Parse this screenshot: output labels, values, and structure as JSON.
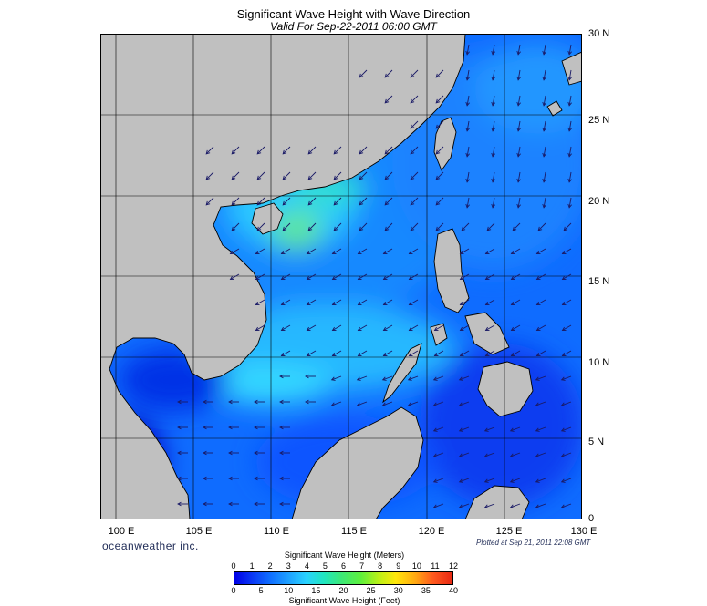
{
  "title": "Significant Wave Height with Wave Direction",
  "subtitle": "Valid For Sep-22-2011 06:00 GMT",
  "lat_labels": [
    "30 N",
    "25 N",
    "20 N",
    "15 N",
    "10 N",
    "5 N",
    "0"
  ],
  "lon_labels": [
    "100 E",
    "105 E",
    "110 E",
    "115 E",
    "120 E",
    "125 E",
    "130 E"
  ],
  "brand": "oceanweather inc.",
  "plotted": "Plotted at Sep 21, 2011 22:08 GMT",
  "colorbar": {
    "label_meters": "Significant Wave Height (Meters)",
    "label_feet": "Significant Wave Height (Feet)",
    "meters_ticks": [
      "0",
      "1",
      "2",
      "3",
      "4",
      "5",
      "6",
      "7",
      "8",
      "9",
      "10",
      "11",
      "12"
    ],
    "feet_ticks": [
      "0",
      "5",
      "10",
      "15",
      "20",
      "25",
      "30",
      "35",
      "40"
    ]
  },
  "map": {
    "lon_range": [
      99,
      130
    ],
    "lat_range": [
      0,
      30
    ],
    "land_color": "#c0c0c0",
    "ocean_base_color": "#0f6cff",
    "grid_lines": "on",
    "arrow_color": "#1a1a66"
  }
}
